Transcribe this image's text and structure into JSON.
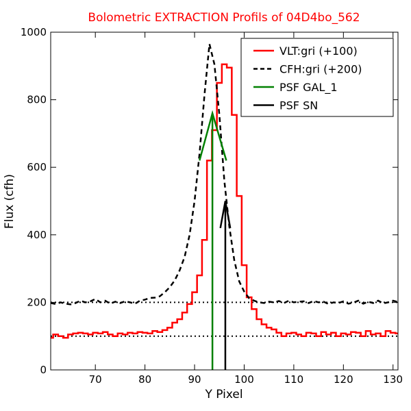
{
  "chart_data": {
    "type": "line",
    "title": "Bolometric EXTRACTION Profils of 04D4bo_562",
    "title_color": "#ff0000",
    "xlabel": "Y Pixel",
    "ylabel": "Flux (cfh)",
    "xlim": [
      61,
      131
    ],
    "ylim": [
      0,
      1000
    ],
    "xticks": [
      70,
      80,
      90,
      100,
      110,
      120,
      130
    ],
    "yticks": [
      0,
      200,
      400,
      600,
      800,
      1000
    ],
    "legend_position": "top-right",
    "grid": false,
    "series": [
      {
        "name": "VLT:gri (+100)",
        "style": "steps",
        "color": "#ff0000",
        "x": [
          61,
          62,
          63,
          64,
          65,
          66,
          67,
          68,
          69,
          70,
          71,
          72,
          73,
          74,
          75,
          76,
          77,
          78,
          79,
          80,
          81,
          82,
          83,
          84,
          85,
          86,
          87,
          88,
          89,
          90,
          91,
          92,
          93,
          94,
          95,
          96,
          97,
          98,
          99,
          100,
          101,
          102,
          103,
          104,
          105,
          106,
          107,
          108,
          109,
          110,
          111,
          112,
          113,
          114,
          115,
          116,
          117,
          118,
          119,
          120,
          121,
          122,
          123,
          124,
          125,
          126,
          127,
          128,
          129,
          130,
          131
        ],
        "y": [
          95,
          105,
          100,
          95,
          105,
          108,
          110,
          108,
          105,
          110,
          108,
          112,
          105,
          100,
          108,
          105,
          110,
          108,
          112,
          110,
          108,
          115,
          112,
          118,
          125,
          140,
          150,
          170,
          195,
          230,
          280,
          385,
          620,
          710,
          850,
          905,
          895,
          755,
          515,
          310,
          215,
          180,
          150,
          135,
          125,
          120,
          110,
          100,
          108,
          110,
          105,
          100,
          110,
          108,
          100,
          112,
          105,
          110,
          100,
          108,
          105,
          112,
          110,
          100,
          115,
          105,
          108,
          100,
          115,
          110,
          108
        ]
      },
      {
        "name": "CFH:gri (+200)",
        "style": "dashed",
        "color": "#000000",
        "x": [
          61,
          62,
          63,
          64,
          65,
          66,
          67,
          68,
          69,
          70,
          71,
          72,
          73,
          74,
          75,
          76,
          77,
          78,
          79,
          80,
          81,
          82,
          83,
          84,
          85,
          86,
          87,
          88,
          89,
          90,
          91,
          92,
          93,
          94,
          95,
          96,
          97,
          98,
          99,
          100,
          101,
          102,
          103,
          104,
          105,
          106,
          107,
          108,
          109,
          110,
          111,
          112,
          113,
          114,
          115,
          116,
          117,
          118,
          119,
          120,
          121,
          122,
          123,
          124,
          125,
          126,
          127,
          128,
          129,
          130,
          131
        ],
        "y": [
          198,
          195,
          200,
          196,
          194,
          198,
          205,
          200,
          203,
          210,
          200,
          205,
          196,
          202,
          198,
          203,
          200,
          196,
          205,
          208,
          213,
          214,
          218,
          230,
          245,
          265,
          295,
          335,
          400,
          500,
          640,
          815,
          965,
          905,
          755,
          560,
          425,
          325,
          262,
          232,
          212,
          205,
          200,
          198,
          202,
          200,
          204,
          198,
          205,
          200,
          202,
          203,
          198,
          204,
          200,
          202,
          195,
          200,
          198,
          203,
          196,
          199,
          205,
          196,
          202,
          198,
          205,
          197,
          200,
          205,
          201
        ]
      },
      {
        "name": "PSF GAL_1",
        "style": "solid",
        "color": "#008000",
        "x": [
          91,
          93.6,
          96.4
        ],
        "y": [
          620,
          760,
          620
        ],
        "vline_x": 93.6
      },
      {
        "name": "PSF SN",
        "style": "solid",
        "color": "#000000",
        "x": [
          95.2,
          96.2,
          97.2
        ],
        "y": [
          420,
          500,
          420
        ],
        "vline_x": 96.2
      }
    ],
    "reference_lines": [
      {
        "y": 200,
        "style": "dotted",
        "color": "#000000"
      },
      {
        "y": 100,
        "style": "dotted",
        "color": "#000000"
      }
    ]
  }
}
